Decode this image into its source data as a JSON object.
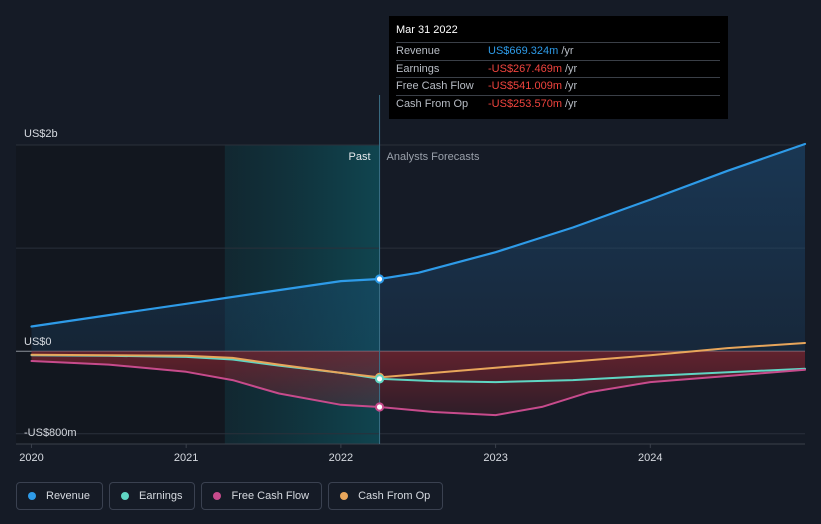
{
  "tooltip": {
    "date": "Mar 31 2022",
    "rows": [
      {
        "label": "Revenue",
        "value": "US$669.324m",
        "unit": "/yr",
        "color": "#2e9be8"
      },
      {
        "label": "Earnings",
        "value": "-US$267.469m",
        "unit": "/yr",
        "color": "#f0443e"
      },
      {
        "label": "Free Cash Flow",
        "value": "-US$541.009m",
        "unit": "/yr",
        "color": "#f0443e"
      },
      {
        "label": "Cash From Op",
        "value": "-US$253.570m",
        "unit": "/yr",
        "color": "#f0443e"
      }
    ]
  },
  "legend": [
    {
      "label": "Revenue",
      "color": "#2e9be8"
    },
    {
      "label": "Earnings",
      "color": "#5fd5c3"
    },
    {
      "label": "Free Cash Flow",
      "color": "#c74b8c"
    },
    {
      "label": "Cash From Op",
      "color": "#e8a65b"
    }
  ],
  "chart_data": {
    "type": "line",
    "xlim": [
      2019.9,
      2025.0
    ],
    "ylim": [
      -900,
      2000
    ],
    "y_tick_labels": [
      {
        "value": 2000,
        "label": "US$2b"
      },
      {
        "value": 0,
        "label": "US$0"
      },
      {
        "value": -800,
        "label": "-US$800m"
      }
    ],
    "x_ticks": [
      2020,
      2021,
      2022,
      2023,
      2024
    ],
    "x_tick_labels": [
      "2020",
      "2021",
      "2022",
      "2023",
      "2024"
    ],
    "past_label": "Past",
    "forecast_label": "Analysts Forecasts",
    "divider_x": 2022.25,
    "highlight_start_x": 2021.25,
    "series": [
      {
        "name": "Revenue",
        "color": "#2e9be8",
        "width": 2.2,
        "x": [
          2020.0,
          2020.5,
          2021.0,
          2021.5,
          2022.0,
          2022.25,
          2022.5,
          2023.0,
          2023.5,
          2024.0,
          2024.5,
          2025.0
        ],
        "y": [
          240,
          350,
          460,
          570,
          680,
          700,
          760,
          960,
          1200,
          1470,
          1750,
          2010
        ]
      },
      {
        "name": "Earnings",
        "color": "#5fd5c3",
        "width": 2,
        "x": [
          2020.0,
          2020.5,
          2021.0,
          2021.3,
          2021.6,
          2022.0,
          2022.25,
          2022.6,
          2023.0,
          2023.5,
          2024.0,
          2024.5,
          2025.0
        ],
        "y": [
          -40,
          -45,
          -55,
          -80,
          -140,
          -210,
          -268,
          -290,
          -300,
          -280,
          -240,
          -205,
          -170
        ]
      },
      {
        "name": "Free Cash Flow",
        "color": "#c74b8c",
        "width": 2,
        "x": [
          2020.0,
          2020.5,
          2021.0,
          2021.3,
          2021.6,
          2022.0,
          2022.25,
          2022.6,
          2023.0,
          2023.3,
          2023.6,
          2024.0,
          2024.5,
          2025.0
        ],
        "y": [
          -95,
          -130,
          -200,
          -280,
          -410,
          -520,
          -541,
          -590,
          -620,
          -540,
          -400,
          -300,
          -240,
          -180
        ]
      },
      {
        "name": "Cash From Op",
        "color": "#e8a65b",
        "width": 2,
        "x": [
          2020.0,
          2020.5,
          2021.0,
          2021.3,
          2021.6,
          2022.0,
          2022.25,
          2022.6,
          2023.0,
          2023.5,
          2024.0,
          2024.5,
          2025.0
        ],
        "y": [
          -35,
          -40,
          -45,
          -65,
          -130,
          -210,
          -254,
          -210,
          -160,
          -100,
          -40,
          30,
          80
        ]
      }
    ]
  }
}
